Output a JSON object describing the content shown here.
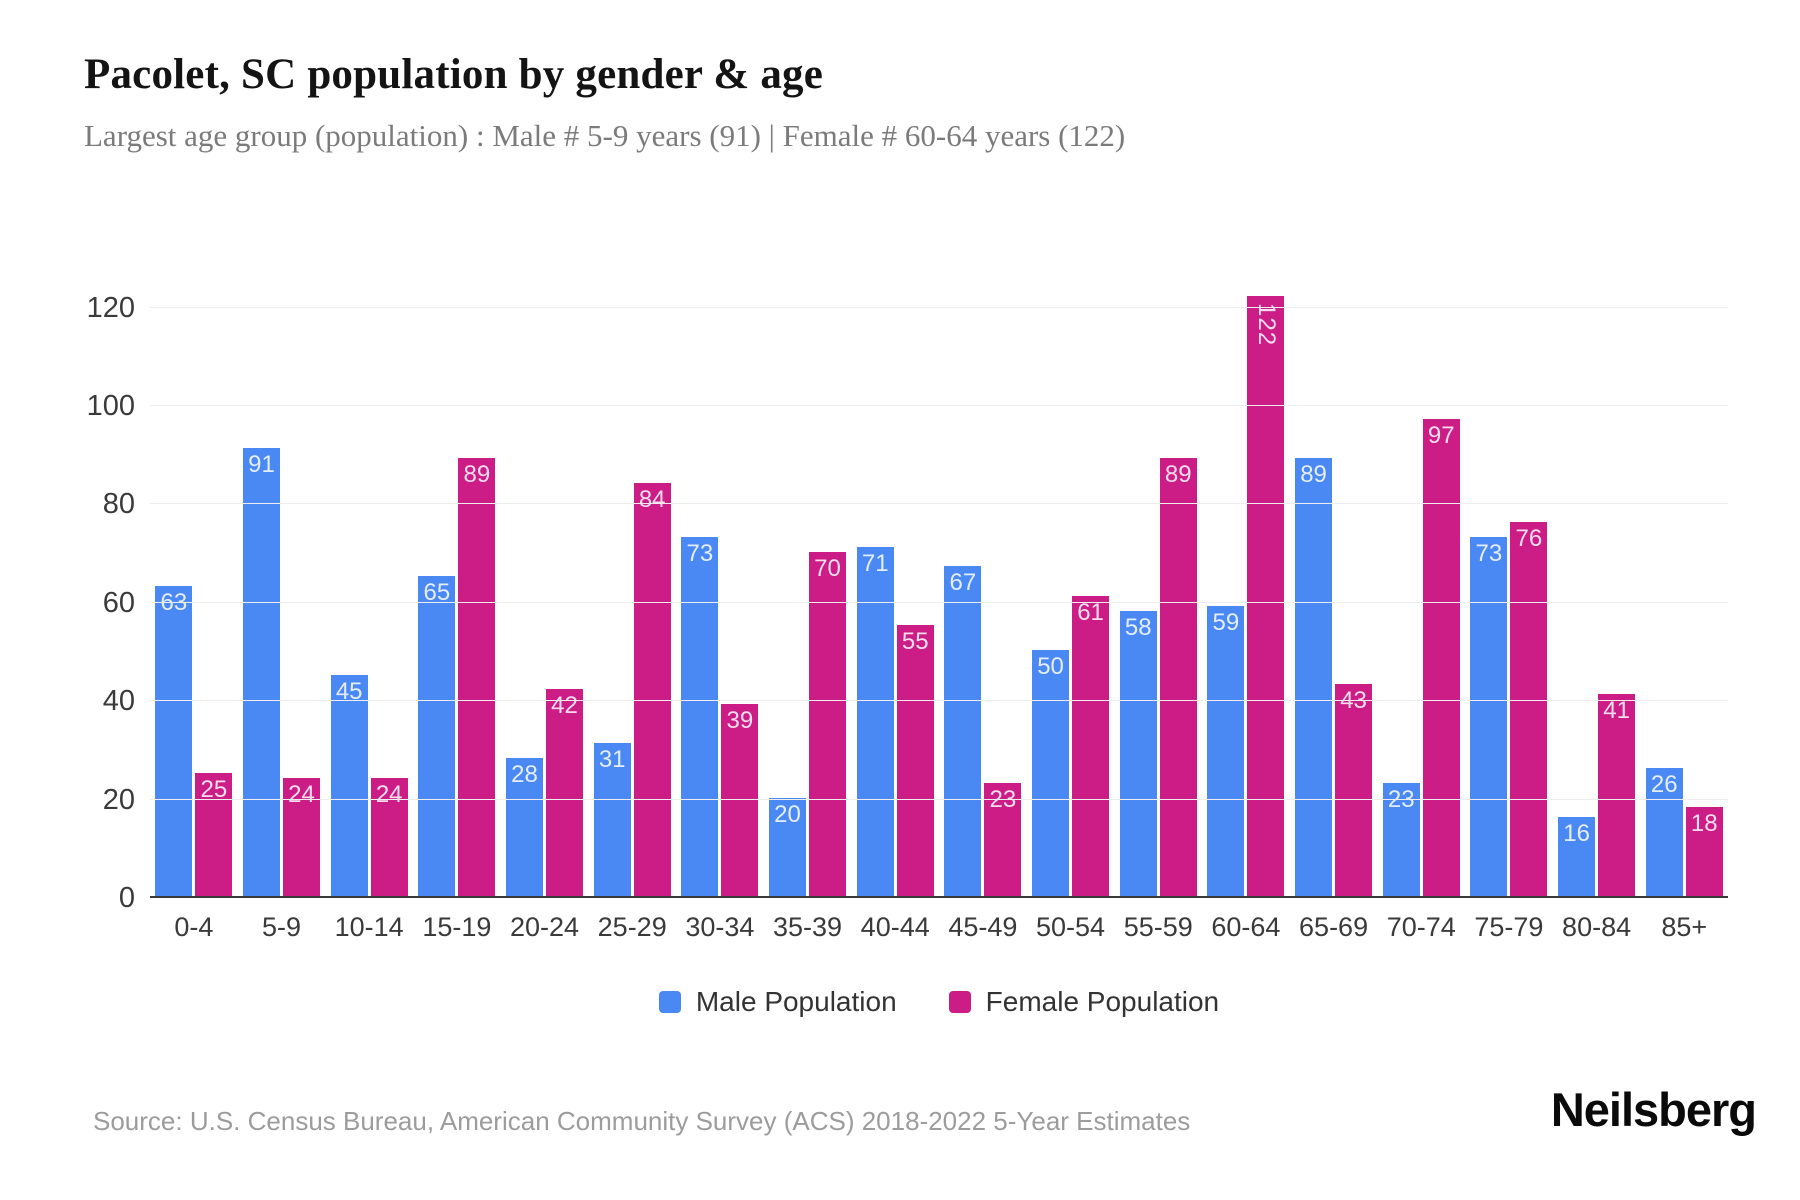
{
  "header": {
    "title": "Pacolet, SC population by gender & age",
    "subtitle": "Largest age group (population) : Male # 5-9 years (91) | Female # 60-64 years (122)"
  },
  "footer": {
    "source": "Source: U.S. Census Bureau, American Community Survey (ACS) 2018-2022 5-Year Estimates",
    "logo": "Neilsberg"
  },
  "colors": {
    "male": "#4a89f3",
    "female": "#cc1d87",
    "grid": "#ededed",
    "axis_line": "#3a3a3a",
    "tick_label": "#3a3a3a",
    "value_label": "rgba(255,255,255,0.85)",
    "title": "#141414",
    "subtitle": "#7b7b7b",
    "source": "#9c9c9c"
  },
  "chart_data": {
    "type": "bar",
    "title": "Pacolet, SC population by gender & age",
    "categories": [
      "0-4",
      "5-9",
      "10-14",
      "15-19",
      "20-24",
      "25-29",
      "30-34",
      "35-39",
      "40-44",
      "45-49",
      "50-54",
      "55-59",
      "60-64",
      "65-69",
      "70-74",
      "75-79",
      "80-84",
      "85+"
    ],
    "series": [
      {
        "name": "Male Population",
        "color": "#4a89f3",
        "values": [
          63,
          91,
          45,
          65,
          28,
          31,
          73,
          20,
          71,
          67,
          50,
          58,
          59,
          89,
          23,
          73,
          16,
          26
        ]
      },
      {
        "name": "Female Population",
        "color": "#cc1d87",
        "values": [
          25,
          24,
          24,
          89,
          42,
          84,
          39,
          70,
          55,
          23,
          61,
          89,
          122,
          43,
          97,
          76,
          41,
          18
        ]
      }
    ],
    "xlabel": "",
    "ylabel": "",
    "ylim": [
      0,
      120
    ],
    "yticks": [
      0,
      20,
      40,
      60,
      80,
      100,
      120
    ],
    "grid": true,
    "legend_position": "bottom",
    "bar_value_labels": "inside-top"
  }
}
